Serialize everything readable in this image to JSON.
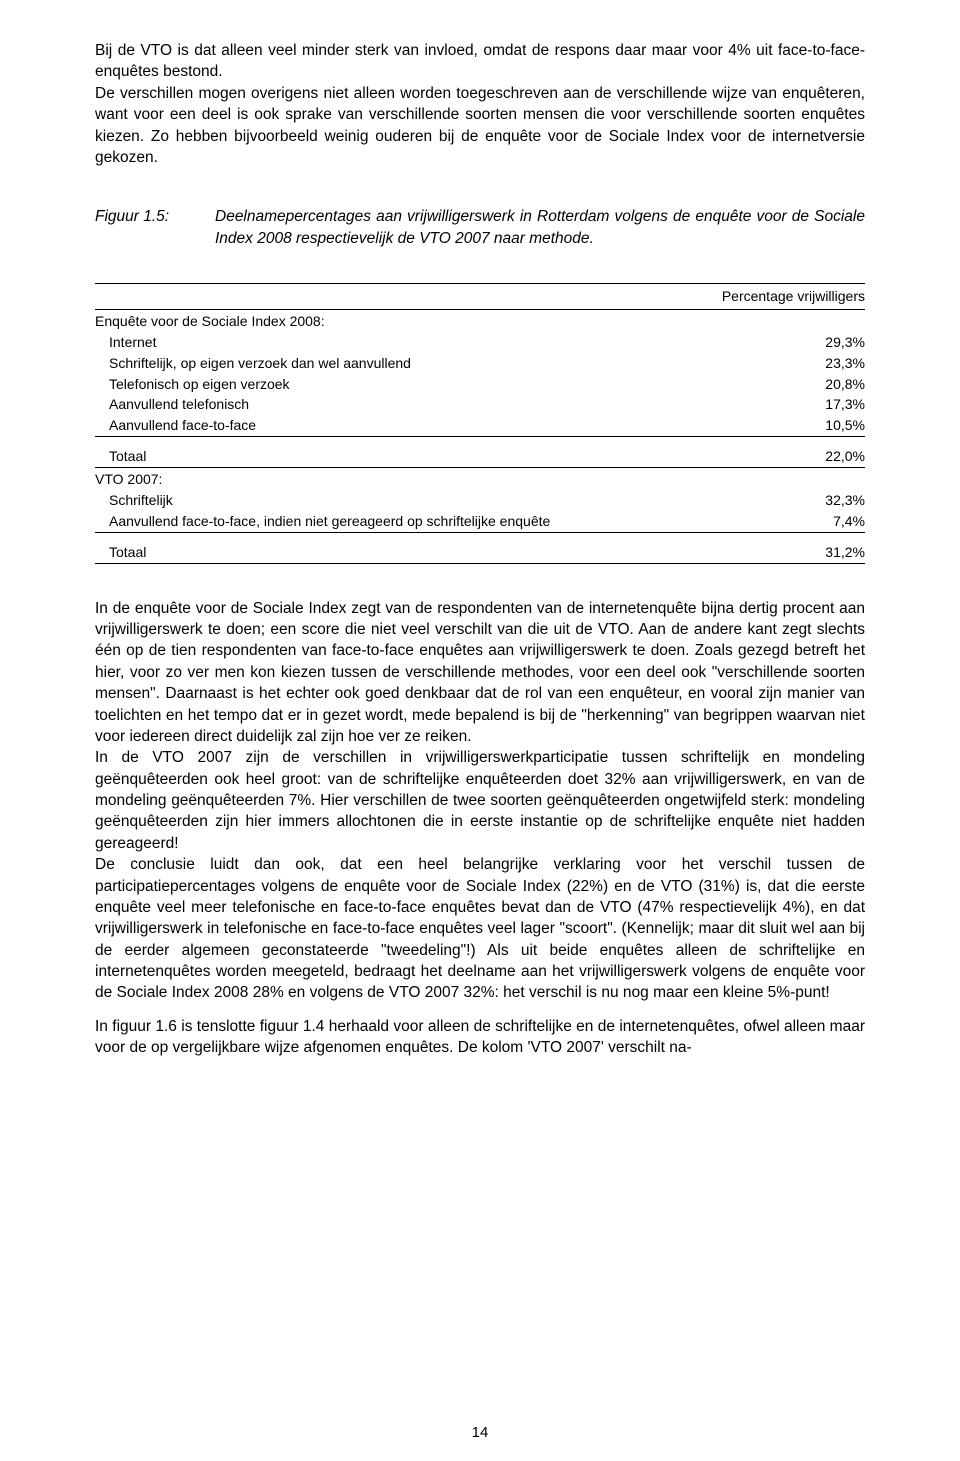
{
  "intro": {
    "p1": "Bij de VTO is dat alleen veel minder sterk van invloed, omdat de respons daar maar voor 4% uit face-to-face-enquêtes bestond.",
    "p2": "De verschillen mogen overigens niet alleen worden toegeschreven aan de verschillende wijze van enquêteren, want voor een deel is ook sprake van verschillende soorten mensen die voor verschillende soorten enquêtes kiezen. Zo hebben bijvoorbeeld weinig ouderen bij de enquête voor de Sociale Index voor de internetversie gekozen."
  },
  "figure": {
    "label": "Figuur 1.5:",
    "caption": "Deelnamepercentages aan vrijwilligerswerk in Rotterdam volgens de enquête voor de Sociale Index 2008 respectievelijk de VTO 2007 naar methode."
  },
  "table": {
    "header_col": "Percentage vrijwilligers",
    "sections": [
      {
        "title": "Enquête voor de Sociale Index 2008:",
        "rows": [
          {
            "label": "Internet",
            "value": "29,3%"
          },
          {
            "label": "Schriftelijk, op eigen verzoek dan wel aanvullend",
            "value": "23,3%"
          },
          {
            "label": "Telefonisch op eigen verzoek",
            "value": "20,8%"
          },
          {
            "label": "Aanvullend telefonisch",
            "value": "17,3%"
          },
          {
            "label": "Aanvullend face-to-face",
            "value": "10,5%"
          }
        ],
        "total": {
          "label": "Totaal",
          "value": "22,0%"
        }
      },
      {
        "title": "VTO 2007:",
        "rows": [
          {
            "label": "Schriftelijk",
            "value": "32,3%"
          },
          {
            "label": "Aanvullend face-to-face, indien niet gereageerd op schriftelijke enquête",
            "value": "7,4%"
          }
        ],
        "total": {
          "label": "Totaal",
          "value": "31,2%"
        }
      }
    ]
  },
  "body": {
    "p1": "In de enquête voor de Sociale Index zegt van de respondenten van de internetenquête bijna dertig procent aan vrijwilligerswerk te doen; een score die niet veel verschilt van die uit de VTO. Aan de andere kant zegt slechts één op de tien respondenten van face-to-face enquêtes aan vrijwilligerswerk te doen. Zoals gezegd betreft het hier, voor zo ver men kon kiezen tussen de verschillende methodes, voor een deel ook \"verschillende soorten mensen\". Daarnaast is het echter ook goed denkbaar dat de rol van een enquêteur, en vooral zijn manier van toelichten en het tempo dat er in gezet wordt, mede bepalend is bij de \"herkenning\" van begrippen waarvan niet voor iedereen direct duidelijk zal zijn hoe ver ze reiken.",
    "p2": "In de VTO 2007 zijn de verschillen in vrijwilligerswerkparticipatie tussen schriftelijk en mondeling geënquêteerden ook heel groot: van de schriftelijke enquêteerden doet 32% aan vrijwilligerswerk, en van de mondeling geënquêteerden 7%. Hier verschillen de twee soorten geënquêteerden ongetwijfeld sterk: mondeling geënquêteerden zijn hier immers allochtonen die in eerste instantie op de schriftelijke enquête niet hadden gereageerd!",
    "p3": "De conclusie luidt dan ook, dat een heel belangrijke verklaring voor het verschil tussen de participatiepercentages volgens de enquête voor de Sociale Index (22%) en de VTO (31%) is, dat die eerste enquête veel meer telefonische en face-to-face enquêtes bevat dan de VTO (47% respectievelijk 4%), en dat vrijwilligerswerk in telefonische en face-to-face enquêtes veel lager \"scoort\". (Kennelijk; maar dit sluit wel aan bij de eerder algemeen geconstateerde \"tweedeling\"!) Als uit beide enquêtes alleen de schriftelijke en internetenquêtes worden meegeteld, bedraagt het deelname aan het vrijwilligerswerk volgens de enquête voor de Sociale Index 2008 28% en volgens de VTO 2007 32%: het verschil is nu nog maar een kleine 5%-punt!",
    "p4": "In figuur 1.6 is tenslotte figuur 1.4 herhaald voor alleen de schriftelijke en de internetenquêtes, ofwel alleen maar voor de op vergelijkbare wijze afgenomen enquêtes. De kolom 'VTO 2007' verschilt na-"
  },
  "page_number": "14"
}
